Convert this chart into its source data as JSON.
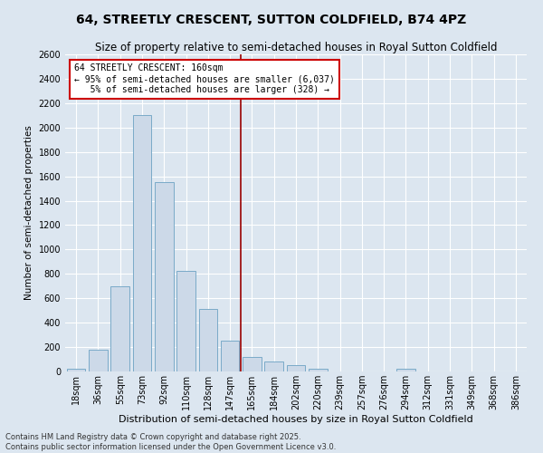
{
  "title": "64, STREETLY CRESCENT, SUTTON COLDFIELD, B74 4PZ",
  "subtitle": "Size of property relative to semi-detached houses in Royal Sutton Coldfield",
  "xlabel": "Distribution of semi-detached houses by size in Royal Sutton Coldfield",
  "ylabel": "Number of semi-detached properties",
  "categories": [
    "18sqm",
    "36sqm",
    "55sqm",
    "73sqm",
    "92sqm",
    "110sqm",
    "128sqm",
    "147sqm",
    "165sqm",
    "184sqm",
    "202sqm",
    "220sqm",
    "239sqm",
    "257sqm",
    "276sqm",
    "294sqm",
    "312sqm",
    "331sqm",
    "349sqm",
    "368sqm",
    "386sqm"
  ],
  "values": [
    20,
    175,
    700,
    2100,
    1550,
    825,
    510,
    255,
    120,
    80,
    50,
    25,
    0,
    0,
    0,
    20,
    0,
    0,
    0,
    0,
    0
  ],
  "bar_color": "#ccd9e8",
  "bar_edge_color": "#7aaac8",
  "vline_color": "#990000",
  "vline_x_index": 8,
  "annotation_text": "64 STREETLY CRESCENT: 160sqm\n← 95% of semi-detached houses are smaller (6,037)\n   5% of semi-detached houses are larger (328) →",
  "annotation_box_facecolor": "#ffffff",
  "annotation_box_edgecolor": "#cc0000",
  "ylim": [
    0,
    2600
  ],
  "yticks": [
    0,
    200,
    400,
    600,
    800,
    1000,
    1200,
    1400,
    1600,
    1800,
    2000,
    2200,
    2400,
    2600
  ],
  "bg_color": "#dce6f0",
  "grid_color": "#ffffff",
  "footer": "Contains HM Land Registry data © Crown copyright and database right 2025.\nContains public sector information licensed under the Open Government Licence v3.0.",
  "title_fontsize": 10,
  "subtitle_fontsize": 8.5,
  "xlabel_fontsize": 8,
  "ylabel_fontsize": 7.5,
  "tick_fontsize": 7,
  "annotation_fontsize": 7,
  "footer_fontsize": 6
}
